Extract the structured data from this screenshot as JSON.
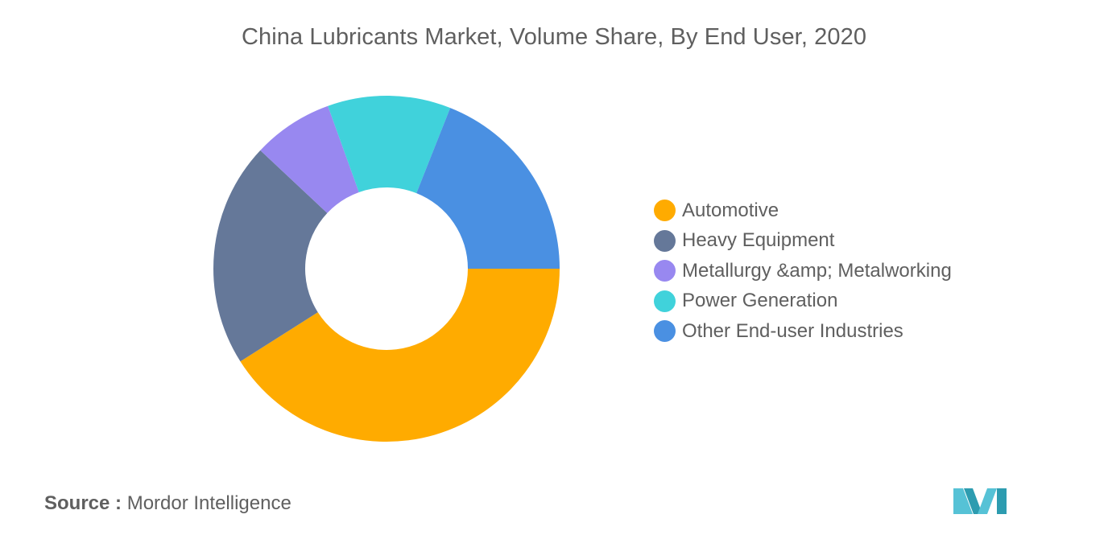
{
  "chart_data": {
    "type": "pie",
    "donut": true,
    "title": "China Lubricants Market, Volume Share, By End User, 2020",
    "slices": [
      {
        "label": "Automotive",
        "value": 41,
        "color": "#FFAB00"
      },
      {
        "label": "Heavy Equipment",
        "value": 21,
        "color": "#657899"
      },
      {
        "label": "Metallurgy &amp; Metalworking",
        "value": 7.5,
        "color": "#9888F0"
      },
      {
        "label": "Power Generation",
        "value": 11.5,
        "color": "#40D2DB"
      },
      {
        "label": "Other End-user Industries",
        "value": 19,
        "color": "#4A90E2"
      }
    ],
    "legend_position": "right"
  },
  "source": {
    "prefix": "Source :",
    "text": "Mordor Intelligence"
  },
  "logo": {
    "icon": "mordor-intelligence-logo-icon",
    "colors": [
      "#2D9CB0",
      "#56C2D6"
    ]
  }
}
